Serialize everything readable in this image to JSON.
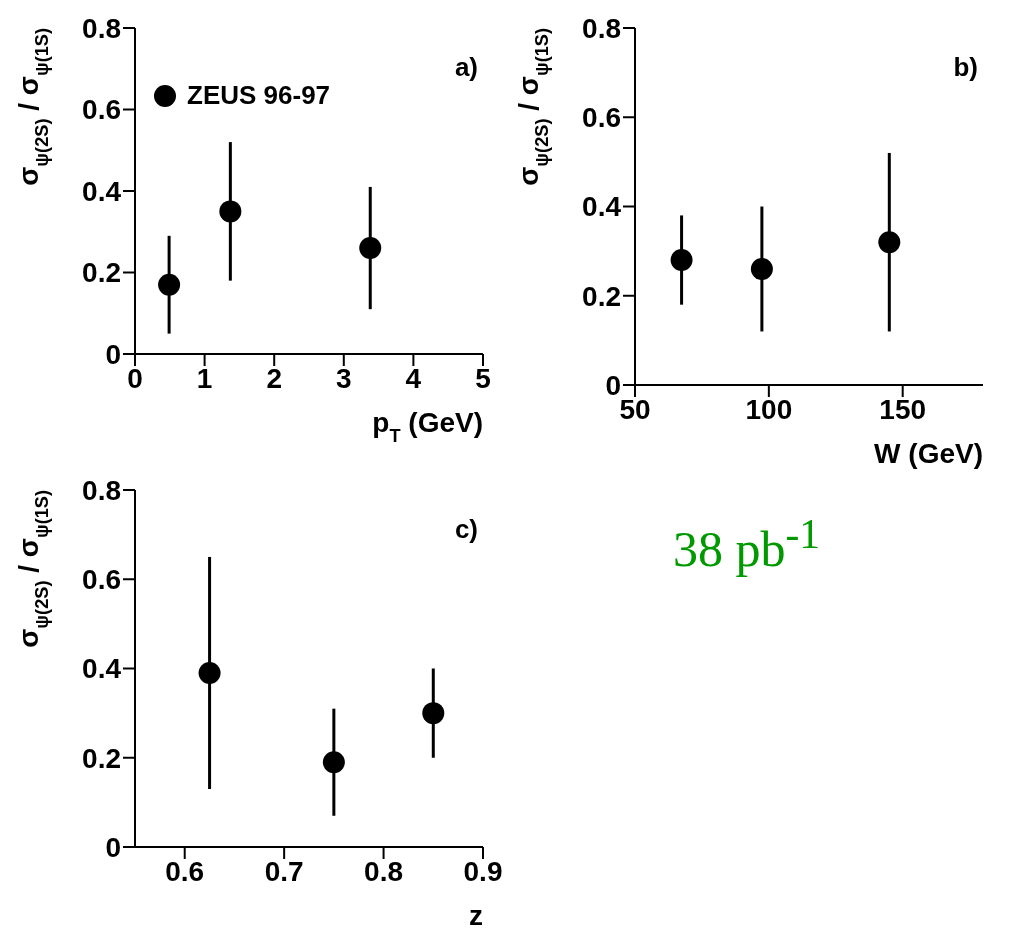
{
  "chart_data": [
    {
      "type": "scatter",
      "xlabel": "p$_{T}$ (GeV)",
      "ylabel": "σ$_{ψ(2S)}$ / σ$_{ψ(1S)}$",
      "annotations": [
        "a)"
      ],
      "legend": "top left",
      "marker": "circle",
      "xlim": [
        0,
        5
      ],
      "xticks": [
        0,
        1,
        2,
        3,
        4,
        5
      ],
      "ylim": [
        0,
        0.8
      ],
      "yticks": [
        0,
        0.2,
        0.4,
        0.6,
        0.8
      ],
      "series": [
        {
          "name": "ZEUS 96-97",
          "color": "#000000",
          "x": [
            0.49,
            1.37,
            3.38
          ],
          "values": [
            0.17,
            0.35,
            0.26
          ],
          "errors": [
            [
              0.05,
              0.29
            ],
            [
              0.18,
              0.52
            ],
            [
              0.11,
              0.41
            ]
          ]
        }
      ]
    },
    {
      "type": "scatter",
      "xlabel": "W (GeV)",
      "ylabel": "σ$_{ψ(2S)}$ / σ$_{ψ(1S)}$",
      "annotations": [
        "b)"
      ],
      "marker": "circle",
      "xlim": [
        50,
        180
      ],
      "xticks": [
        50,
        100,
        150
      ],
      "ylim": [
        0,
        0.8
      ],
      "yticks": [
        0,
        0.2,
        0.4,
        0.6,
        0.8
      ],
      "series": [
        {
          "color": "#000000",
          "x": [
            67.4,
            97.4,
            145
          ],
          "values": [
            0.28,
            0.26,
            0.32
          ],
          "errors": [
            [
              0.18,
              0.38
            ],
            [
              0.12,
              0.4
            ],
            [
              0.12,
              0.52
            ]
          ]
        }
      ]
    },
    {
      "type": "scatter",
      "xlabel": "z",
      "ylabel": "σ$_{ψ(2S)}$ / σ$_{ψ(1S)}$",
      "annotations": [
        "c)"
      ],
      "marker": "circle",
      "xlim": [
        0.55,
        0.9
      ],
      "xticks": [
        0.6,
        0.7,
        0.8,
        0.9
      ],
      "ylim": [
        0,
        0.8
      ],
      "yticks": [
        0,
        0.2,
        0.4,
        0.6,
        0.8
      ],
      "series": [
        {
          "color": "#000000",
          "x": [
            0.625,
            0.75,
            0.85
          ],
          "values": [
            0.39,
            0.19,
            0.3
          ],
          "errors": [
            [
              0.13,
              0.65
            ],
            [
              0.07,
              0.31
            ],
            [
              0.2,
              0.4
            ]
          ]
        }
      ]
    },
    {
      "type": "other",
      "annotations": [
        "38 pb$^{-1}$"
      ]
    }
  ]
}
